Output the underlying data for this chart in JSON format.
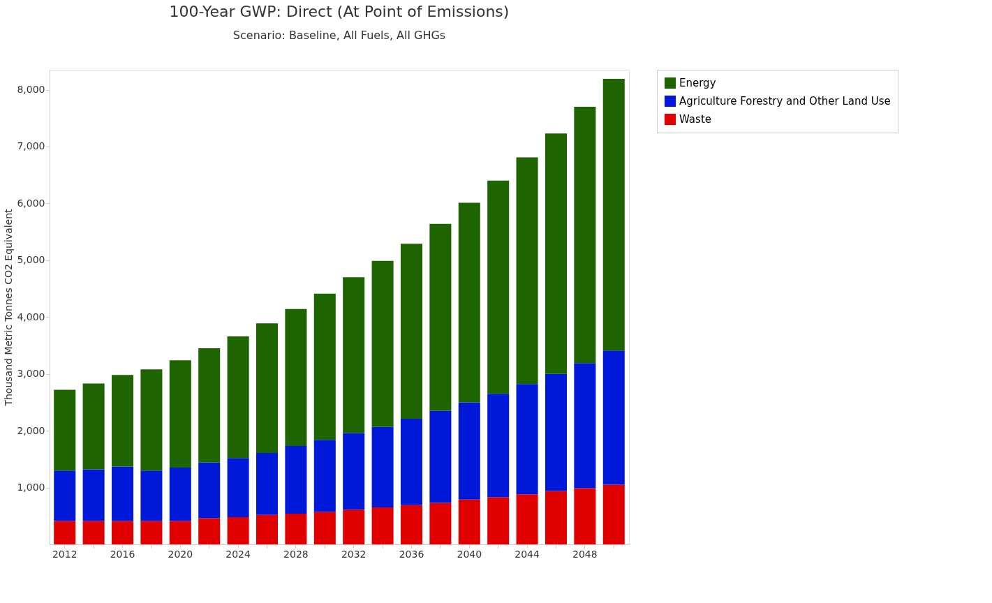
{
  "chart_data": {
    "type": "bar",
    "title": "100-Year GWP: Direct (At Point of Emissions)",
    "subtitle": "Scenario: Baseline, All Fuels, All GHGs",
    "ylabel": "Thousand Metric Tonnes CO2 Equivalent",
    "categories": [
      "2012",
      null,
      "2016",
      null,
      "2020",
      null,
      "2024",
      null,
      "2028",
      null,
      "2032",
      null,
      "2036",
      null,
      "2040",
      null,
      "2044",
      null,
      "2048",
      null
    ],
    "stacked": true,
    "series": [
      {
        "name": "Waste",
        "color": "#e00000",
        "values": [
          410,
          410,
          410,
          410,
          410,
          460,
          480,
          520,
          540,
          570,
          610,
          650,
          690,
          730,
          790,
          830,
          880,
          940,
          990,
          1050
        ]
      },
      {
        "name": "Agriculture Forestry and Other Land Use",
        "color": "#0018d8",
        "values": [
          890,
          910,
          960,
          890,
          940,
          980,
          1040,
          1090,
          1190,
          1270,
          1350,
          1420,
          1520,
          1620,
          1710,
          1820,
          1940,
          2060,
          2200,
          2360
        ]
      },
      {
        "name": "Energy",
        "color": "#1e6400",
        "values": [
          1420,
          1510,
          1610,
          1780,
          1890,
          2010,
          2140,
          2280,
          2410,
          2570,
          2740,
          2920,
          3080,
          3290,
          3510,
          3750,
          3990,
          4230,
          4510,
          4780
        ]
      }
    ],
    "ylim": [
      0,
      8350
    ],
    "yticks": [
      {
        "value": 1000,
        "label": "1,000"
      },
      {
        "value": 2000,
        "label": "2,000"
      },
      {
        "value": 3000,
        "label": "3,000"
      },
      {
        "value": 4000,
        "label": "4,000"
      },
      {
        "value": 5000,
        "label": "5,000"
      },
      {
        "value": 6000,
        "label": "6,000"
      },
      {
        "value": 7000,
        "label": "7,000"
      },
      {
        "value": 8000,
        "label": "8,000"
      }
    ],
    "grid": false,
    "legend": "top right"
  }
}
